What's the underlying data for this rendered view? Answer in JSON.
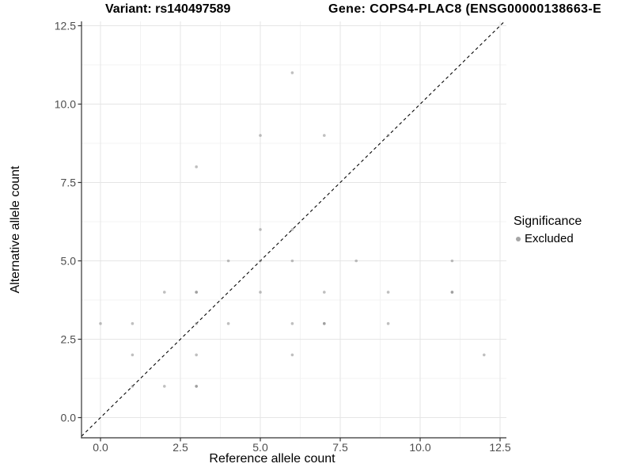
{
  "chart_data": {
    "type": "scatter",
    "title_left": "Variant: rs140497589",
    "title_right": "Gene: COPS4-PLAC8 (ENSG00000138663-E",
    "xlabel": "Reference allele count",
    "ylabel": "Alternative allele count",
    "x_ticks": [
      "0.0",
      "2.5",
      "5.0",
      "7.5",
      "10.0",
      "12.5"
    ],
    "y_ticks": [
      "0.0",
      "2.5",
      "5.0",
      "7.5",
      "10.0",
      "12.5"
    ],
    "x_tick_values": [
      0,
      2.5,
      5,
      7.5,
      10,
      12.5
    ],
    "y_tick_values": [
      0,
      2.5,
      5,
      7.5,
      10,
      12.5
    ],
    "minor_tick_values": [
      1.25,
      3.75,
      6.25,
      8.75,
      11.25
    ],
    "xlim": [
      -0.6,
      12.7
    ],
    "ylim": [
      -0.65,
      12.65
    ],
    "grid": true,
    "identity_line": {
      "show": true,
      "style": "dashed",
      "slope": 1,
      "intercept": 0
    },
    "legend": {
      "title": "Significance",
      "items": [
        {
          "label": "Excluded",
          "color": "#a6a6a6"
        }
      ],
      "position": "right"
    },
    "points": [
      {
        "x": 0,
        "y": 3,
        "count": 1
      },
      {
        "x": 1,
        "y": 1,
        "count": 1
      },
      {
        "x": 1,
        "y": 2,
        "count": 1
      },
      {
        "x": 1,
        "y": 3,
        "count": 1
      },
      {
        "x": 2,
        "y": 1,
        "count": 1
      },
      {
        "x": 2,
        "y": 4,
        "count": 1
      },
      {
        "x": 3,
        "y": 1,
        "count": 2
      },
      {
        "x": 3,
        "y": 2,
        "count": 1
      },
      {
        "x": 3,
        "y": 3,
        "count": 1
      },
      {
        "x": 3,
        "y": 4,
        "count": 2
      },
      {
        "x": 3,
        "y": 8,
        "count": 1
      },
      {
        "x": 4,
        "y": 3,
        "count": 1
      },
      {
        "x": 4,
        "y": 5,
        "count": 1
      },
      {
        "x": 5,
        "y": 4,
        "count": 1
      },
      {
        "x": 5,
        "y": 5,
        "count": 1
      },
      {
        "x": 5,
        "y": 6,
        "count": 1
      },
      {
        "x": 5,
        "y": 9,
        "count": 1
      },
      {
        "x": 6,
        "y": 2,
        "count": 1
      },
      {
        "x": 6,
        "y": 3,
        "count": 1
      },
      {
        "x": 6,
        "y": 5,
        "count": 1
      },
      {
        "x": 6,
        "y": 6,
        "count": 1
      },
      {
        "x": 6,
        "y": 11,
        "count": 1
      },
      {
        "x": 7,
        "y": 3,
        "count": 2
      },
      {
        "x": 7,
        "y": 4,
        "count": 1
      },
      {
        "x": 7,
        "y": 9,
        "count": 1
      },
      {
        "x": 8,
        "y": 5,
        "count": 1
      },
      {
        "x": 9,
        "y": 3,
        "count": 1
      },
      {
        "x": 9,
        "y": 4,
        "count": 1
      },
      {
        "x": 9,
        "y": 9,
        "count": 1
      },
      {
        "x": 11,
        "y": 4,
        "count": 2
      },
      {
        "x": 11,
        "y": 5,
        "count": 1
      },
      {
        "x": 12,
        "y": 2,
        "count": 1
      }
    ],
    "colors": {
      "point": "#7f7f7f",
      "point_opacity": 0.5,
      "grid_major": "#e5e5e5",
      "grid_minor": "#f3f3f3",
      "axis_line": "#333333",
      "tick_label": "#4d4d4d",
      "dashed_line": "#000000"
    }
  }
}
